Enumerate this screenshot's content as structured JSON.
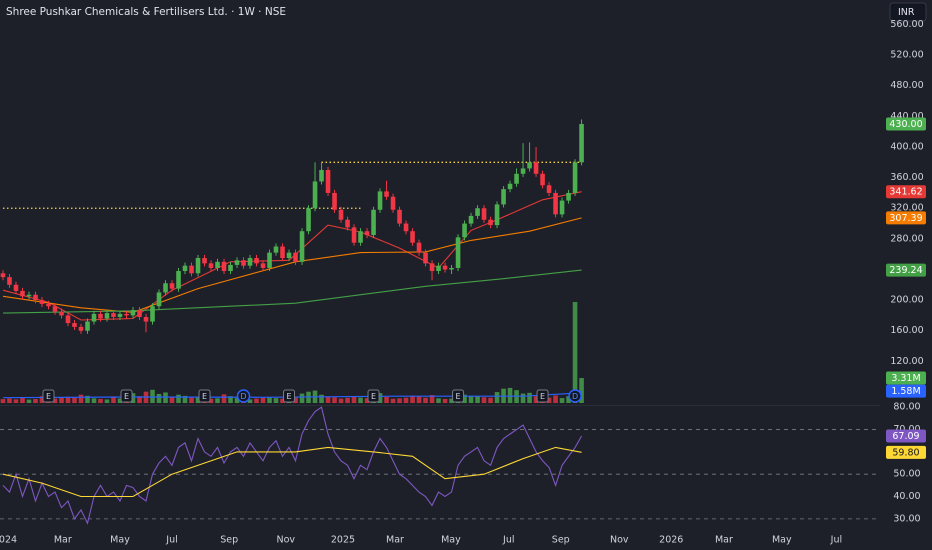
{
  "chart_data": [
    {
      "type": "candlestick",
      "title": "Shree Pushkar Chemicals & Fertilisers Ltd. · 1W · NSE",
      "currency": "INR",
      "x": [
        0,
        1,
        2,
        3,
        4,
        5,
        6,
        7,
        8,
        9,
        10,
        11,
        12,
        13,
        14,
        15,
        16,
        17,
        18,
        19,
        20,
        21,
        22,
        23,
        24,
        25,
        26,
        27,
        28,
        29,
        30,
        31,
        32,
        33,
        34,
        35,
        36,
        37,
        38,
        39,
        40,
        41,
        42,
        43,
        44,
        45,
        46,
        47,
        48,
        49,
        50,
        51,
        52,
        53,
        54,
        55,
        56,
        57,
        58,
        59,
        60,
        61,
        62,
        63,
        64,
        65,
        66,
        67,
        68,
        69,
        70,
        71,
        72,
        73,
        74,
        75,
        76,
        77,
        78,
        79,
        80,
        81,
        82,
        83,
        84,
        85,
        86,
        87,
        88,
        89
      ],
      "candles": {
        "open": [
          235,
          230,
          220,
          212,
          205,
          207,
          200,
          195,
          192,
          185,
          180,
          170,
          165,
          160,
          172,
          182,
          176,
          183,
          178,
          182,
          180,
          187,
          178,
          172,
          192,
          210,
          222,
          215,
          238,
          245,
          235,
          255,
          248,
          242,
          250,
          238,
          246,
          252,
          245,
          255,
          248,
          242,
          262,
          270,
          255,
          262,
          250,
          290,
          320,
          355,
          370,
          340,
          318,
          305,
          295,
          275,
          290,
          285,
          318,
          342,
          335,
          318,
          300,
          290,
          275,
          262,
          248,
          238,
          245,
          240,
          242,
          282,
          300,
          310,
          320,
          305,
          298,
          325,
          345,
          352,
          365,
          372,
          380,
          365,
          350,
          340,
          312,
          330,
          340,
          380
        ],
        "high": [
          239,
          234,
          224,
          216,
          211,
          211,
          204,
          199,
          196,
          189,
          184,
          174,
          169,
          176,
          186,
          186,
          187,
          187,
          186,
          186,
          191,
          191,
          182,
          196,
          214,
          226,
          226,
          242,
          249,
          249,
          259,
          259,
          252,
          254,
          254,
          250,
          256,
          256,
          259,
          259,
          252,
          266,
          274,
          274,
          266,
          266,
          294,
          324,
          380,
          380,
          374,
          344,
          322,
          309,
          299,
          294,
          294,
          322,
          346,
          356,
          339,
          322,
          304,
          294,
          279,
          266,
          252,
          249,
          249,
          246,
          286,
          304,
          314,
          324,
          324,
          309,
          329,
          349,
          356,
          372,
          405,
          406,
          400,
          369,
          354,
          344,
          334,
          344,
          384,
          436
        ],
        "low": [
          226,
          216,
          208,
          201,
          201,
          196,
          191,
          188,
          181,
          176,
          166,
          161,
          156,
          156,
          168,
          172,
          172,
          174,
          174,
          176,
          176,
          174,
          158,
          168,
          188,
          206,
          211,
          211,
          234,
          231,
          231,
          244,
          238,
          238,
          234,
          234,
          242,
          241,
          241,
          244,
          238,
          238,
          258,
          251,
          251,
          246,
          246,
          286,
          316,
          351,
          336,
          314,
          301,
          291,
          271,
          271,
          281,
          281,
          314,
          331,
          314,
          296,
          286,
          271,
          258,
          244,
          226,
          234,
          236,
          234,
          238,
          278,
          296,
          306,
          301,
          294,
          294,
          321,
          341,
          348,
          361,
          368,
          361,
          346,
          336,
          308,
          308,
          326,
          336,
          376
        ],
        "close": [
          230,
          220,
          212,
          205,
          207,
          200,
          195,
          192,
          185,
          180,
          170,
          165,
          160,
          172,
          182,
          176,
          183,
          178,
          182,
          180,
          187,
          178,
          172,
          192,
          210,
          222,
          215,
          238,
          245,
          235,
          255,
          248,
          242,
          250,
          238,
          246,
          252,
          245,
          255,
          248,
          242,
          262,
          270,
          255,
          262,
          250,
          290,
          320,
          355,
          370,
          340,
          318,
          305,
          295,
          275,
          290,
          285,
          318,
          342,
          335,
          318,
          300,
          290,
          275,
          262,
          248,
          238,
          245,
          240,
          242,
          282,
          300,
          310,
          320,
          305,
          298,
          325,
          345,
          352,
          365,
          372,
          380,
          365,
          350,
          340,
          312,
          330,
          340,
          380,
          430
        ],
        "up_color": "#4caf50",
        "down_color": "#f23645",
        "last": {
          "value": 430,
          "label": "430.00"
        }
      },
      "series": [
        {
          "color": "#e53935",
          "x": [
            0,
            7,
            12,
            20,
            26,
            35,
            44,
            50,
            55,
            61,
            67,
            72,
            76,
            83,
            89
          ],
          "values": [
            213,
            197,
            174,
            176,
            213,
            250,
            252,
            298,
            289,
            268,
            242,
            291,
            305,
            331,
            341.62
          ],
          "last": 341.62
        },
        {
          "color": "#f57c00",
          "x": [
            0,
            12,
            20,
            30,
            45,
            55,
            65,
            72,
            81,
            89
          ],
          "values": [
            205,
            190,
            184,
            215,
            250,
            262,
            263,
            278,
            290,
            307.39
          ],
          "last": 307.39
        },
        {
          "color": "#43a047",
          "x": [
            0,
            20,
            45,
            65,
            77,
            89
          ],
          "values": [
            183,
            186,
            196,
            218,
            228,
            239.24
          ],
          "last": 239.24
        }
      ],
      "levels": [
        {
          "value": 380,
          "x": [
            49,
            89
          ],
          "color": "#f5d547"
        },
        {
          "value": 320,
          "x": [
            0,
            55
          ],
          "color": "#f5d547"
        }
      ],
      "volume": {
        "values": [
          520000,
          610000,
          480000,
          700000,
          450000,
          530000,
          900000,
          640000,
          580000,
          760000,
          820000,
          690000,
          1100000,
          950000,
          620000,
          540000,
          470000,
          880000,
          600000,
          510000,
          1300000,
          900000,
          1500000,
          1750000,
          1200000,
          1400000,
          800000,
          1100000,
          950000,
          700000,
          850000,
          600000,
          560000,
          620000,
          1150000,
          900000,
          650000,
          540000,
          480000,
          600000,
          700000,
          750000,
          640000,
          560000,
          900000,
          720000,
          1250000,
          1500000,
          1650000,
          1100000,
          800000,
          760000,
          580000,
          690000,
          900000,
          720000,
          640000,
          1200000,
          1300000,
          800000,
          560000,
          620000,
          700000,
          980000,
          850000,
          700000,
          1050000,
          620000,
          540000,
          580000,
          1400000,
          1100000,
          950000,
          880000,
          760000,
          700000,
          1450000,
          1900000,
          2000000,
          1700000,
          1250000,
          1350000,
          900000,
          800000,
          720000,
          1000000,
          650000,
          900000,
          13400000,
          3310000
        ],
        "up_color": "#4caf50",
        "down_color": "#f23645",
        "last": {
          "value": 3310000,
          "label": "3.31M"
        },
        "ma": {
          "color": "#2962ff",
          "x": [
            0,
            20,
            40,
            60,
            80,
            88,
            89
          ],
          "values": [
            700000,
            800000,
            750000,
            900000,
            900000,
            1300000,
            1580000
          ],
          "last": {
            "value": 1580000,
            "label": "1.58M"
          }
        }
      },
      "events": [
        {
          "label": "E",
          "x": 7
        },
        {
          "label": "E",
          "x": 19
        },
        {
          "label": "E",
          "x": 31
        },
        {
          "label": "D",
          "x": 37
        },
        {
          "label": "E",
          "x": 44
        },
        {
          "label": "E",
          "x": 57
        },
        {
          "label": "E",
          "x": 70
        },
        {
          "label": "E",
          "x": 83
        },
        {
          "label": "D",
          "x": 88
        }
      ],
      "xlim": [
        -0.46,
        134.6
      ],
      "xticks": [
        {
          "value": 0.3,
          "label": "2024"
        },
        {
          "value": 9.2,
          "label": "Mar"
        },
        {
          "value": 18,
          "label": "May"
        },
        {
          "value": 26,
          "label": "Jul"
        },
        {
          "value": 34.8,
          "label": "Sep"
        },
        {
          "value": 43.5,
          "label": "Nov"
        },
        {
          "value": 52.3,
          "label": "2025"
        },
        {
          "value": 60.3,
          "label": "Mar"
        },
        {
          "value": 68.9,
          "label": "May"
        },
        {
          "value": 77.8,
          "label": "Jul"
        },
        {
          "value": 85.8,
          "label": "Sep"
        },
        {
          "value": 94.8,
          "label": "Nov"
        },
        {
          "value": 102.8,
          "label": "2026"
        },
        {
          "value": 110.9,
          "label": "Mar"
        },
        {
          "value": 119.8,
          "label": "May"
        },
        {
          "value": 128.2,
          "label": "Jul"
        }
      ],
      "ylim": [
        63,
        592
      ],
      "yticks": [
        {
          "value": 560,
          "label": "560.00"
        },
        {
          "value": 520,
          "label": "520.00"
        },
        {
          "value": 480,
          "label": "480.00"
        },
        {
          "value": 440,
          "label": "440.00"
        },
        {
          "value": 400,
          "label": "400.00"
        },
        {
          "value": 360,
          "label": "360.00"
        },
        {
          "value": 320,
          "label": "320.00"
        },
        {
          "value": 280,
          "label": "280.00"
        },
        {
          "value": 200,
          "label": "200.00"
        },
        {
          "value": 160,
          "label": "160.00"
        },
        {
          "value": 120,
          "label": "120.00"
        }
      ]
    },
    {
      "type": "line",
      "series": [
        {
          "color": "#7e57c2",
          "x": [
            0,
            1,
            2,
            3,
            4,
            5,
            6,
            7,
            8,
            9,
            10,
            11,
            12,
            13,
            14,
            15,
            16,
            17,
            18,
            19,
            20,
            21,
            22,
            23,
            24,
            25,
            26,
            27,
            28,
            29,
            30,
            31,
            32,
            33,
            34,
            35,
            36,
            37,
            38,
            39,
            40,
            41,
            42,
            43,
            44,
            45,
            46,
            47,
            48,
            49,
            50,
            51,
            52,
            53,
            54,
            55,
            56,
            57,
            58,
            59,
            60,
            61,
            62,
            63,
            64,
            65,
            66,
            67,
            68,
            69,
            70,
            71,
            72,
            73,
            74,
            75,
            76,
            77,
            78,
            79,
            80,
            81,
            82,
            83,
            84,
            85,
            86,
            87,
            88,
            89
          ],
          "values": [
            45,
            42,
            50,
            40,
            48,
            38,
            46,
            40,
            42,
            35,
            38,
            30,
            34,
            28,
            40,
            45,
            40,
            42,
            38,
            45,
            44,
            40,
            38,
            50,
            55,
            58,
            54,
            62,
            64,
            56,
            66,
            60,
            58,
            62,
            55,
            60,
            62,
            58,
            64,
            60,
            56,
            62,
            65,
            58,
            62,
            56,
            68,
            74,
            78,
            80,
            68,
            60,
            56,
            54,
            48,
            54,
            52,
            60,
            66,
            62,
            56,
            50,
            48,
            45,
            42,
            40,
            36,
            42,
            40,
            42,
            54,
            58,
            60,
            62,
            56,
            54,
            62,
            66,
            68,
            70,
            72,
            66,
            60,
            56,
            53,
            45,
            54,
            58,
            62,
            67.09
          ],
          "last": 67.09
        },
        {
          "color": "#fdd835",
          "x": [
            0,
            6,
            12,
            20,
            26,
            36,
            45,
            50,
            57,
            63,
            68,
            74,
            80,
            85,
            89
          ],
          "values": [
            50,
            46,
            40,
            40,
            50,
            60,
            60,
            62,
            60,
            58,
            48,
            50,
            57,
            62,
            59.8
          ],
          "last": {
            "value": 59.8,
            "label": "59.80"
          }
        }
      ],
      "levels": [
        70,
        50,
        30
      ],
      "ylim": [
        25,
        81
      ],
      "yticks": [
        {
          "value": 80,
          "label": "80.00"
        },
        {
          "value": 70,
          "label": "70.00"
        },
        {
          "value": 50,
          "label": "50.00"
        },
        {
          "value": 40,
          "label": "40.00"
        },
        {
          "value": 30,
          "label": "30.00"
        }
      ]
    }
  ]
}
